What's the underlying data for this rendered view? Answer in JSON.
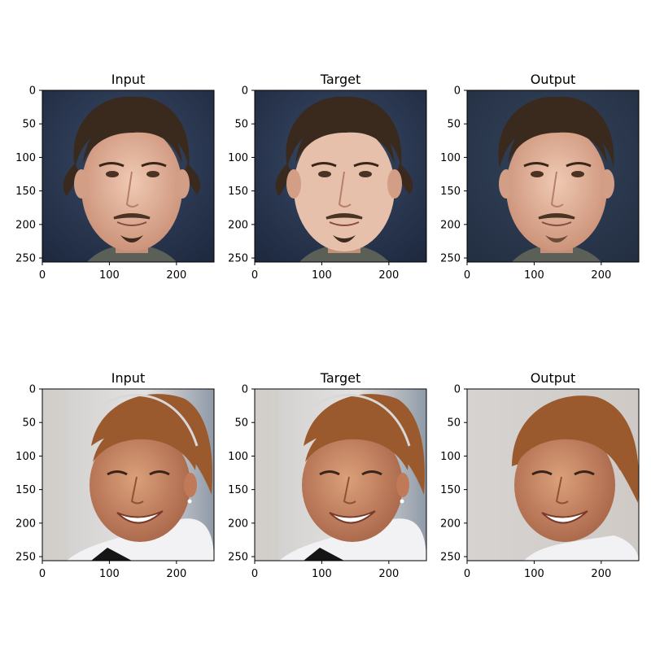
{
  "figure": {
    "panels": [
      {
        "title": "Input",
        "row": 0,
        "col": 0,
        "subject": "man-face",
        "variant": "input"
      },
      {
        "title": "Target",
        "row": 0,
        "col": 1,
        "subject": "man-face",
        "variant": "target"
      },
      {
        "title": "Output",
        "row": 0,
        "col": 2,
        "subject": "man-face",
        "variant": "output"
      },
      {
        "title": "Input",
        "row": 1,
        "col": 0,
        "subject": "woman-face",
        "variant": "input"
      },
      {
        "title": "Target",
        "row": 1,
        "col": 1,
        "subject": "woman-face",
        "variant": "target"
      },
      {
        "title": "Output",
        "row": 1,
        "col": 2,
        "subject": "woman-face",
        "variant": "output"
      }
    ],
    "image_extent": [
      0,
      256
    ],
    "xticks": [
      0,
      100,
      200
    ],
    "yticks": [
      0,
      50,
      100,
      150,
      200,
      250
    ],
    "colors": {
      "man_background": "#27354f",
      "man_skin": "#e0b49c",
      "man_hair": "#3a2a1e",
      "woman_background": "#d9d6d3",
      "woman_skin": "#c98a62",
      "woman_hair": "#9b5a2e",
      "shirt_white": "#f2f2f4"
    }
  }
}
